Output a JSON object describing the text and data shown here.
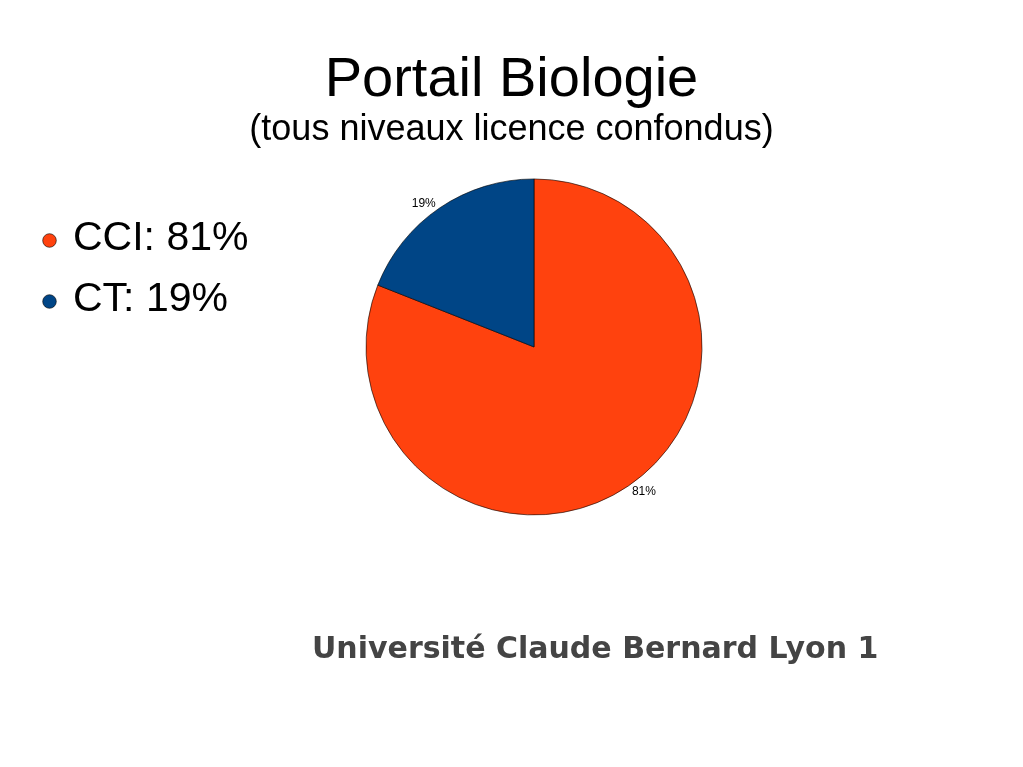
{
  "chart_data": {
    "type": "pie",
    "title": "Portail Biologie",
    "subtitle": "(tous niveaux licence confondus)",
    "categories": [
      "CCI",
      "CT"
    ],
    "values": [
      81,
      19
    ],
    "colors": [
      "#ff420e",
      "#004586"
    ],
    "value_labels": [
      "81%",
      "19%"
    ],
    "legend": "left",
    "annotations": [
      "Université Claude Bernard Lyon 1"
    ]
  }
}
